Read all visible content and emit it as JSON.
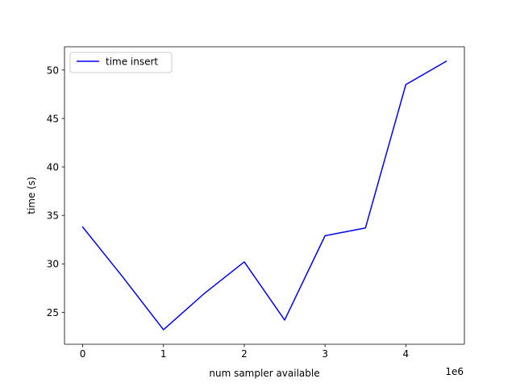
{
  "chart_data": {
    "type": "line",
    "title": "",
    "xlabel": "num sampler available",
    "ylabel": "time (s)",
    "x_offset_label": "1e6",
    "xlim": [
      -225000,
      4725000
    ],
    "ylim": [
      21.7,
      52.4
    ],
    "x_ticks": [
      0,
      1000000,
      2000000,
      3000000,
      4000000
    ],
    "x_tick_labels": [
      "0",
      "1",
      "2",
      "3",
      "4"
    ],
    "y_ticks": [
      25,
      30,
      35,
      40,
      45,
      50
    ],
    "y_tick_labels": [
      "25",
      "30",
      "35",
      "40",
      "45",
      "50"
    ],
    "grid": false,
    "legend_position": "upper-left",
    "series": [
      {
        "name": "time insert",
        "color": "#0000ff",
        "x": [
          0,
          500000,
          1000000,
          1500000,
          2000000,
          2500000,
          3000000,
          3500000,
          4000000,
          4500000
        ],
        "y": [
          33.8,
          28.6,
          23.2,
          26.9,
          30.2,
          24.2,
          32.9,
          33.7,
          48.5,
          50.9
        ]
      }
    ]
  }
}
